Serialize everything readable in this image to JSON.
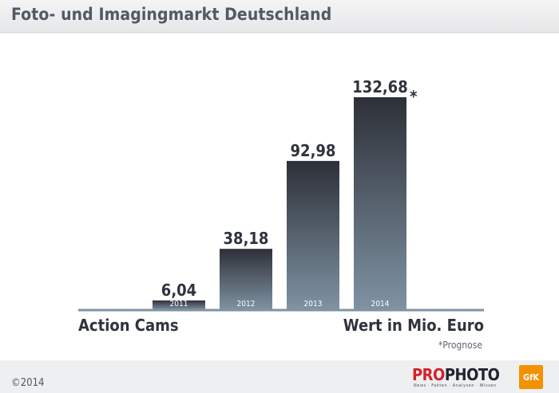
{
  "header": {
    "title": "Foto- und Imagingmarkt Deutschland"
  },
  "chart_data": {
    "type": "bar",
    "categories": [
      "2011",
      "2012",
      "2013",
      "2014"
    ],
    "values": [
      6.04,
      38.18,
      92.98,
      132.68
    ],
    "value_labels": [
      "6,04",
      "38,18",
      "92,98",
      "132,68"
    ],
    "forecast_marker": "*",
    "forecast_index": 3,
    "xlabel": "Action Cams",
    "ylabel": "Wert in Mio. Euro",
    "note": "*Prognose",
    "ylim": [
      0,
      132.68
    ],
    "colors": {
      "bar_top": "#2d3038",
      "bar_bottom": "#7f93a3",
      "axis": "#7f93a3"
    }
  },
  "footer": {
    "copyright": "©2014",
    "logo_prefix": "PRO",
    "logo_suffix": "PHOTO",
    "logo_tagline": "News · Fakten · Analysen · Wissen",
    "partner_badge": "GfK"
  }
}
